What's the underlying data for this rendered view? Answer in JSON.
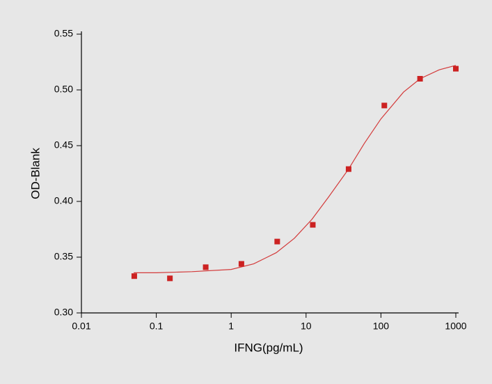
{
  "chart_data": {
    "type": "scatter",
    "xlabel": "IFNG(pg/mL)",
    "ylabel": "OD-Blank",
    "xscale": "log",
    "xlim": [
      0.01,
      1000
    ],
    "xticks": [
      0.01,
      0.1,
      1,
      10,
      100,
      1000
    ],
    "ylim": [
      0.3,
      0.55
    ],
    "yticks": [
      {
        "value": 0.3,
        "label": "0.30"
      },
      {
        "value": 0.35,
        "label": "0.35"
      },
      {
        "value": 0.4,
        "label": "0.40"
      },
      {
        "value": 0.45,
        "label": "0.45"
      },
      {
        "value": 0.5,
        "label": "0.50"
      },
      {
        "value": 0.55,
        "label": "0.55"
      }
    ],
    "series": [
      {
        "kind": "points",
        "color": "#cc2222",
        "x": [
          0.0508,
          0.152,
          0.457,
          1.37,
          4.12,
          12.3,
          37,
          111,
          333,
          1000
        ],
        "values": [
          0.333,
          0.331,
          0.341,
          0.344,
          0.364,
          0.379,
          0.429,
          0.486,
          0.51,
          0.519
        ]
      },
      {
        "kind": "fit",
        "color": "#d33a3a",
        "x": [
          0.05,
          0.1,
          0.3,
          1,
          2,
          4,
          7,
          12,
          20,
          37,
          60,
          100,
          200,
          333,
          600,
          1000
        ],
        "values": [
          0.336,
          0.336,
          0.337,
          0.339,
          0.344,
          0.354,
          0.367,
          0.384,
          0.404,
          0.429,
          0.452,
          0.474,
          0.498,
          0.51,
          0.518,
          0.522
        ]
      }
    ]
  }
}
